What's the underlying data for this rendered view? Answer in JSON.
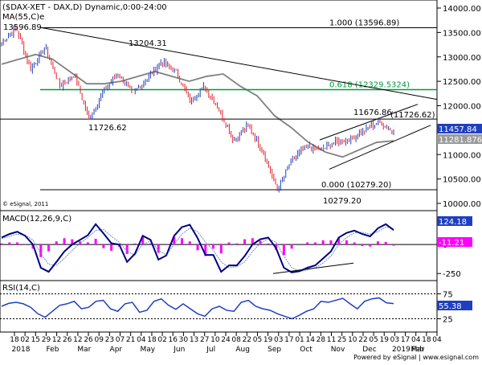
{
  "chart_data": [
    {
      "type": "candlestick",
      "panel": "price",
      "title": "($DAX-XET - DAX,D) Dynamic,0:00-24:00",
      "ma_label": "MA(55,C)e",
      "copyright": "© eSignal, 2011",
      "ylim": [
        10000,
        14000
      ],
      "y_ticks": [
        10000,
        10500,
        11000,
        11500,
        12000,
        12500,
        13000,
        13500,
        14000
      ],
      "y_tick_labels": [
        "10000.00",
        "10500.00",
        "11000.00",
        "11500.00",
        "12000.00",
        "12500.00",
        "13000.00",
        "13500.00",
        "14000.00"
      ],
      "close_label": "11457.84",
      "ma_value_label": "11281.8762",
      "colors": {
        "bull": "#1f3fbf",
        "bear": "#e0202a",
        "ma": "#808080",
        "fib": "#009a3e",
        "line": "#000000"
      },
      "annotations": [
        {
          "text": "13596.89",
          "value": 13596.89
        },
        {
          "text": "13204.31",
          "value": 13204.31
        },
        {
          "text": "11726.62",
          "value": 11726.62
        },
        {
          "text": "11676.86",
          "value": 11676.86
        },
        {
          "text": "(11726.62)",
          "value": 11726.62
        },
        {
          "text": "10279.20",
          "value": 10279.2
        }
      ],
      "fib_levels": [
        {
          "ratio": "1.000",
          "value": 13596.89,
          "text": "1.000 (13596.89)"
        },
        {
          "ratio": "0.618",
          "value": 12329.5324,
          "text": "0.618 (12329.5324)"
        },
        {
          "ratio": "0.000",
          "value": 10279.2,
          "text": "0.000 (10279.20)"
        }
      ],
      "swings": [
        13300,
        13596.89,
        12750,
        13204.31,
        12400,
        12650,
        11726.62,
        12300,
        12650,
        12250,
        12550,
        12900,
        12700,
        12100,
        12400,
        11900,
        11300,
        11600,
        11050,
        10279.2,
        10900,
        11150,
        11100,
        11250,
        11320,
        11500,
        11676.86,
        11457.84
      ],
      "ma_path": [
        12850,
        12950,
        13050,
        12950,
        12700,
        12450,
        12450,
        12500,
        12600,
        12700,
        12600,
        12500,
        12600,
        12650,
        12400,
        12200,
        11800,
        11550,
        11250,
        11050,
        10950,
        11100,
        11250,
        11281.8762
      ]
    },
    {
      "type": "line",
      "panel": "macd",
      "title": "MACD(12,26,9,C)",
      "ylim": [
        -290,
        250
      ],
      "y_ticks": [
        0,
        -250
      ],
      "y_tick_labels": [
        "0",
        "-250"
      ],
      "macd_label": "124.18",
      "hist_label": "-11.21",
      "colors": {
        "macd": "#000080",
        "signal": "#6e8fc8",
        "hist": "#ff00ff",
        "label_bg": "#1f3fbf"
      },
      "macd_points": [
        60,
        90,
        110,
        75,
        0,
        -200,
        -235,
        -150,
        -60,
        0,
        40,
        80,
        175,
        95,
        10,
        0,
        -150,
        -80,
        75,
        40,
        -130,
        -95,
        75,
        150,
        170,
        55,
        -90,
        -90,
        -235,
        -180,
        -180,
        -100,
        0,
        45,
        60,
        -30,
        -200,
        -240,
        -230,
        -200,
        -180,
        -120,
        -60,
        60,
        100,
        120,
        90,
        70,
        140,
        175,
        124.18
      ],
      "signal_points": [
        50,
        70,
        90,
        80,
        40,
        -80,
        -170,
        -180,
        -120,
        -50,
        10,
        60,
        120,
        130,
        70,
        20,
        -60,
        -90,
        0,
        30,
        -50,
        -90,
        0,
        90,
        140,
        110,
        20,
        -50,
        -150,
        -200,
        -190,
        -150,
        -60,
        10,
        50,
        20,
        -100,
        -200,
        -230,
        -220,
        -200,
        -160,
        -100,
        0,
        60,
        100,
        105,
        90,
        110,
        150,
        135.39
      ],
      "divergence_line": [
        -250,
        -160
      ]
    },
    {
      "type": "line",
      "panel": "rsi",
      "title": "RSI(14,C)",
      "ylim": [
        0,
        100
      ],
      "y_ticks": [
        75,
        50,
        25
      ],
      "y_tick_labels": [
        "75",
        "50",
        "25"
      ],
      "rsi_label": "55.38",
      "colors": {
        "rsi": "#1f3fbf",
        "ref": "#000000"
      },
      "rsi_points": [
        50,
        56,
        58,
        55,
        48,
        35,
        28,
        40,
        52,
        55,
        60,
        45,
        48,
        60,
        62,
        45,
        40,
        55,
        58,
        38,
        42,
        60,
        65,
        52,
        44,
        55,
        45,
        35,
        30,
        45,
        50,
        42,
        40,
        58,
        62,
        50,
        45,
        42,
        35,
        30,
        25,
        32,
        40,
        45,
        60,
        58,
        62,
        66,
        55,
        45,
        60,
        65,
        67,
        57,
        55.38
      ]
    },
    {
      "type": "axis",
      "panel": "time",
      "day_labels": [
        "18",
        "02",
        "15",
        "29",
        "12",
        "26",
        "12",
        "26",
        "09",
        "23",
        "07",
        "21",
        "04",
        "18",
        "02",
        "16",
        "30",
        "13",
        "27",
        "10",
        "24",
        "08",
        "22",
        "05",
        "19",
        "03",
        "17",
        "01",
        "14",
        "28",
        "11",
        "25",
        "10",
        "22",
        "05",
        "19",
        "03",
        "17",
        "04",
        "18",
        "04"
      ],
      "month_labels": [
        "2018",
        "Feb",
        "Mar",
        "Apr",
        "May",
        "Jun",
        "Jul",
        "Aug",
        "Sep",
        "Oct",
        "Nov",
        "Dec",
        "2019",
        "Feb",
        "Mar"
      ],
      "footer": "Powered by eSignal | www.esignal.com"
    }
  ]
}
